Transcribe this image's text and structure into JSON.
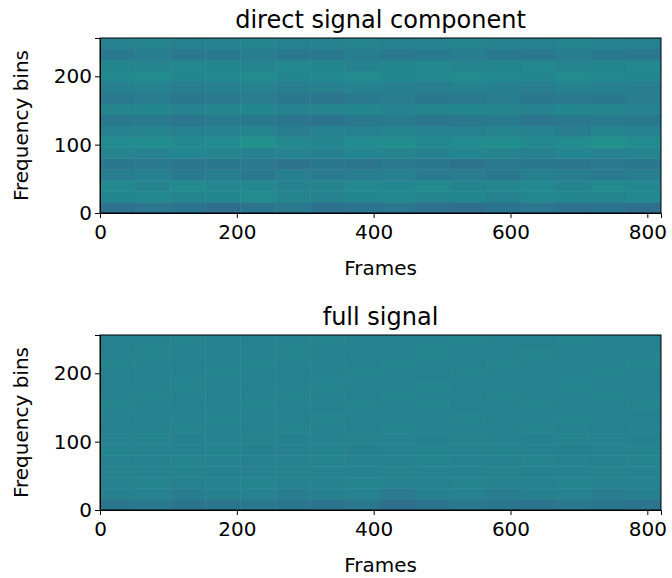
{
  "chart_data": [
    {
      "type": "heatmap",
      "title": "direct signal component",
      "x_label": "Frames",
      "y_label": "Frequency bins",
      "xlim": [
        0,
        820
      ],
      "xticks": [
        0,
        200,
        400,
        600,
        800
      ],
      "ylim": [
        0,
        256
      ],
      "yticks": [
        0,
        100,
        200
      ],
      "zlim": [
        0,
        1
      ],
      "cells": [
        [
          0.37,
          0.39,
          0.38,
          0.36,
          0.38,
          0.4,
          0.37,
          0.38,
          0.39,
          0.37,
          0.36,
          0.38,
          0.39,
          0.37,
          0.38,
          0.36
        ],
        [
          0.46,
          0.47,
          0.45,
          0.46,
          0.48,
          0.45,
          0.44,
          0.46,
          0.47,
          0.45,
          0.46,
          0.44,
          0.47,
          0.46,
          0.45,
          0.47
        ],
        [
          0.47,
          0.45,
          0.48,
          0.46,
          0.47,
          0.44,
          0.45,
          0.47,
          0.46,
          0.48,
          0.45,
          0.46,
          0.47,
          0.45,
          0.48,
          0.46
        ],
        [
          0.42,
          0.43,
          0.41,
          0.42,
          0.4,
          0.43,
          0.41,
          0.42,
          0.43,
          0.41,
          0.42,
          0.4,
          0.43,
          0.42,
          0.41,
          0.42
        ],
        [
          0.4,
          0.41,
          0.39,
          0.4,
          0.41,
          0.38,
          0.4,
          0.39,
          0.41,
          0.4,
          0.38,
          0.41,
          0.4,
          0.39,
          0.41,
          0.4
        ],
        [
          0.45,
          0.44,
          0.46,
          0.45,
          0.43,
          0.45,
          0.44,
          0.46,
          0.45,
          0.44,
          0.46,
          0.45,
          0.43,
          0.46,
          0.44,
          0.45
        ],
        [
          0.48,
          0.49,
          0.47,
          0.48,
          0.5,
          0.47,
          0.46,
          0.48,
          0.49,
          0.47,
          0.48,
          0.49,
          0.47,
          0.48,
          0.5,
          0.48
        ],
        [
          0.44,
          0.45,
          0.43,
          0.44,
          0.45,
          0.42,
          0.44,
          0.43,
          0.45,
          0.44,
          0.43,
          0.45,
          0.44,
          0.42,
          0.45,
          0.44
        ],
        [
          0.4,
          0.41,
          0.39,
          0.41,
          0.4,
          0.39,
          0.38,
          0.4,
          0.41,
          0.39,
          0.4,
          0.41,
          0.39,
          0.4,
          0.41,
          0.4
        ],
        [
          0.45,
          0.46,
          0.44,
          0.45,
          0.46,
          0.44,
          0.45,
          0.46,
          0.44,
          0.45,
          0.46,
          0.45,
          0.44,
          0.46,
          0.45,
          0.44
        ],
        [
          0.41,
          0.42,
          0.4,
          0.41,
          0.42,
          0.4,
          0.39,
          0.41,
          0.42,
          0.4,
          0.41,
          0.42,
          0.4,
          0.41,
          0.4,
          0.42
        ],
        [
          0.43,
          0.44,
          0.42,
          0.43,
          0.44,
          0.42,
          0.43,
          0.44,
          0.43,
          0.42,
          0.44,
          0.43,
          0.42,
          0.44,
          0.43,
          0.42
        ],
        [
          0.47,
          0.48,
          0.46,
          0.47,
          0.48,
          0.46,
          0.47,
          0.48,
          0.46,
          0.47,
          0.48,
          0.47,
          0.46,
          0.48,
          0.47,
          0.46
        ],
        [
          0.46,
          0.45,
          0.47,
          0.46,
          0.45,
          0.47,
          0.46,
          0.44,
          0.46,
          0.47,
          0.45,
          0.46,
          0.47,
          0.45,
          0.46,
          0.47
        ],
        [
          0.41,
          0.42,
          0.4,
          0.41,
          0.42,
          0.4,
          0.41,
          0.42,
          0.4,
          0.41,
          0.42,
          0.41,
          0.4,
          0.42,
          0.41,
          0.4
        ],
        [
          0.44,
          0.45,
          0.43,
          0.44,
          0.45,
          0.43,
          0.44,
          0.45,
          0.43,
          0.44,
          0.45,
          0.44,
          0.43,
          0.45,
          0.44,
          0.43
        ]
      ]
    },
    {
      "type": "heatmap",
      "title": "full signal",
      "x_label": "Frames",
      "y_label": "Frequency bins",
      "xlim": [
        0,
        820
      ],
      "xticks": [
        0,
        200,
        400,
        600,
        800
      ],
      "ylim": [
        0,
        256
      ],
      "yticks": [
        0,
        100,
        200
      ],
      "zlim": [
        0,
        1
      ],
      "cells": [
        [
          0.39,
          0.4,
          0.38,
          0.39,
          0.4,
          0.39,
          0.38,
          0.4,
          0.36,
          0.38,
          0.4,
          0.39,
          0.38,
          0.4,
          0.39,
          0.38
        ],
        [
          0.43,
          0.44,
          0.42,
          0.43,
          0.44,
          0.42,
          0.43,
          0.44,
          0.41,
          0.43,
          0.44,
          0.42,
          0.43,
          0.44,
          0.42,
          0.43
        ],
        [
          0.44,
          0.45,
          0.43,
          0.44,
          0.45,
          0.44,
          0.43,
          0.45,
          0.44,
          0.43,
          0.45,
          0.44,
          0.43,
          0.45,
          0.44,
          0.44
        ],
        [
          0.45,
          0.44,
          0.45,
          0.43,
          0.44,
          0.45,
          0.44,
          0.43,
          0.45,
          0.44,
          0.44,
          0.45,
          0.43,
          0.44,
          0.45,
          0.44
        ],
        [
          0.44,
          0.43,
          0.45,
          0.44,
          0.43,
          0.44,
          0.45,
          0.44,
          0.43,
          0.45,
          0.44,
          0.43,
          0.45,
          0.44,
          0.43,
          0.45
        ],
        [
          0.45,
          0.44,
          0.44,
          0.45,
          0.43,
          0.44,
          0.45,
          0.43,
          0.44,
          0.45,
          0.44,
          0.45,
          0.44,
          0.43,
          0.44,
          0.45
        ],
        [
          0.44,
          0.45,
          0.43,
          0.44,
          0.45,
          0.43,
          0.44,
          0.45,
          0.44,
          0.43,
          0.45,
          0.44,
          0.43,
          0.45,
          0.44,
          0.43
        ],
        [
          0.43,
          0.44,
          0.45,
          0.44,
          0.43,
          0.45,
          0.44,
          0.43,
          0.45,
          0.44,
          0.43,
          0.44,
          0.45,
          0.44,
          0.43,
          0.44
        ],
        [
          0.44,
          0.43,
          0.44,
          0.45,
          0.44,
          0.43,
          0.45,
          0.44,
          0.43,
          0.44,
          0.45,
          0.43,
          0.44,
          0.45,
          0.44,
          0.43
        ],
        [
          0.45,
          0.44,
          0.43,
          0.44,
          0.45,
          0.44,
          0.43,
          0.45,
          0.44,
          0.45,
          0.43,
          0.44,
          0.45,
          0.44,
          0.43,
          0.45
        ],
        [
          0.44,
          0.45,
          0.44,
          0.43,
          0.44,
          0.45,
          0.44,
          0.43,
          0.45,
          0.44,
          0.44,
          0.45,
          0.43,
          0.44,
          0.45,
          0.44
        ],
        [
          0.43,
          0.44,
          0.45,
          0.44,
          0.43,
          0.44,
          0.45,
          0.44,
          0.43,
          0.45,
          0.44,
          0.43,
          0.44,
          0.45,
          0.44,
          0.43
        ],
        [
          0.44,
          0.43,
          0.44,
          0.45,
          0.44,
          0.43,
          0.44,
          0.45,
          0.44,
          0.43,
          0.45,
          0.44,
          0.43,
          0.44,
          0.45,
          0.44
        ],
        [
          0.45,
          0.44,
          0.43,
          0.44,
          0.45,
          0.44,
          0.43,
          0.44,
          0.45,
          0.44,
          0.43,
          0.45,
          0.44,
          0.43,
          0.44,
          0.45
        ],
        [
          0.44,
          0.45,
          0.44,
          0.43,
          0.44,
          0.45,
          0.44,
          0.43,
          0.44,
          0.45,
          0.44,
          0.43,
          0.45,
          0.44,
          0.43,
          0.44
        ],
        [
          0.43,
          0.44,
          0.45,
          0.44,
          0.43,
          0.44,
          0.45,
          0.44,
          0.43,
          0.44,
          0.45,
          0.44,
          0.43,
          0.45,
          0.44,
          0.43
        ]
      ]
    }
  ]
}
